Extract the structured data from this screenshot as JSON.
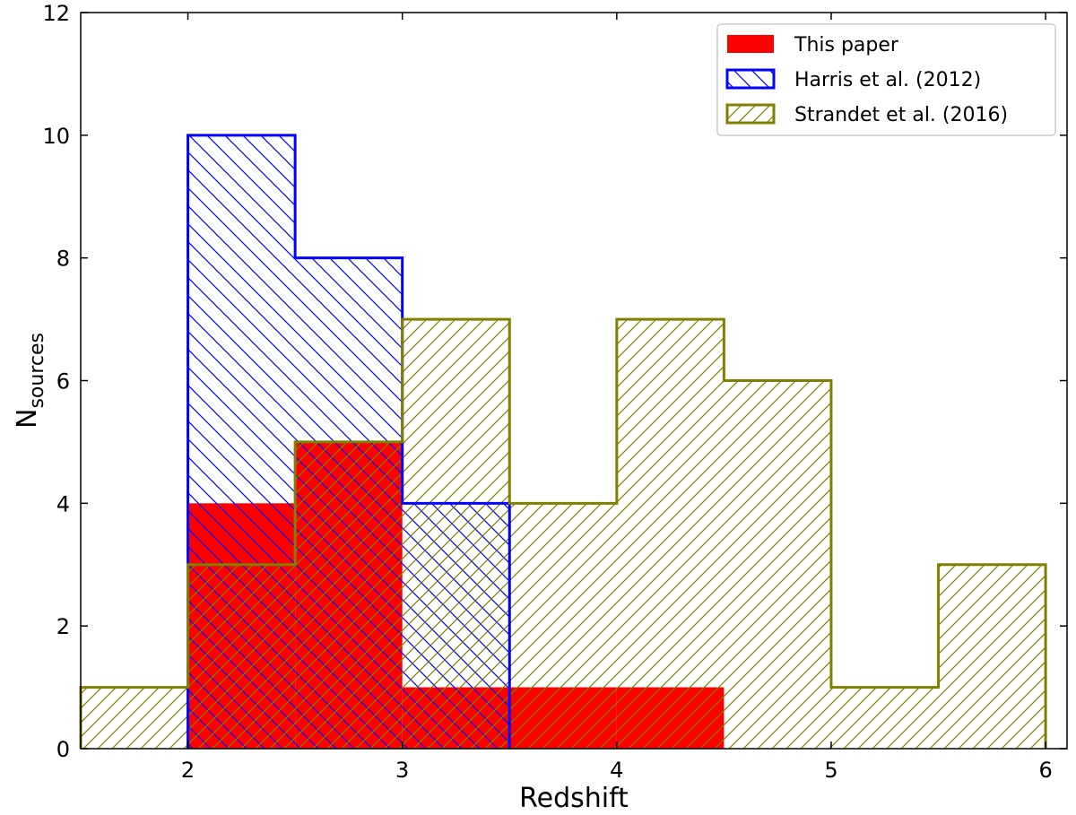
{
  "chart_data": {
    "type": "histogram",
    "xlabel": "Redshift",
    "ylabel": "N",
    "ylabel_sub": "sources",
    "xlim": [
      1.5,
      6.1
    ],
    "ylim": [
      0,
      12
    ],
    "xticks": [
      2,
      3,
      4,
      5,
      6
    ],
    "yticks": [
      0,
      2,
      4,
      6,
      8,
      10,
      12
    ],
    "grid": false,
    "legend_position": "top-right",
    "series": [
      {
        "name": "Strandet et al. (2016)",
        "color": "#808000",
        "style": "hatched-diagonal-forward",
        "bins": [
          {
            "x0": 1.5,
            "x1": 2.0,
            "value": 1
          },
          {
            "x0": 2.0,
            "x1": 2.5,
            "value": 3
          },
          {
            "x0": 2.5,
            "x1": 3.0,
            "value": 5
          },
          {
            "x0": 3.0,
            "x1": 3.5,
            "value": 7
          },
          {
            "x0": 3.5,
            "x1": 4.0,
            "value": 4
          },
          {
            "x0": 4.0,
            "x1": 4.5,
            "value": 7
          },
          {
            "x0": 4.5,
            "x1": 5.0,
            "value": 6
          },
          {
            "x0": 5.0,
            "x1": 5.5,
            "value": 1
          },
          {
            "x0": 5.5,
            "x1": 6.0,
            "value": 3
          }
        ]
      },
      {
        "name": "Harris et al. (2012)",
        "color": "#0000ff",
        "style": "hatched-diagonal-backward",
        "bins": [
          {
            "x0": 2.0,
            "x1": 2.5,
            "value": 10
          },
          {
            "x0": 2.5,
            "x1": 3.0,
            "value": 8
          },
          {
            "x0": 3.0,
            "x1": 3.5,
            "value": 4
          }
        ]
      },
      {
        "name": "This paper",
        "color": "#ff0000",
        "style": "filled",
        "bins": [
          {
            "x0": 2.0,
            "x1": 2.5,
            "value": 4
          },
          {
            "x0": 2.5,
            "x1": 3.0,
            "value": 5
          },
          {
            "x0": 3.0,
            "x1": 3.5,
            "value": 1
          },
          {
            "x0": 3.5,
            "x1": 4.0,
            "value": 1
          },
          {
            "x0": 4.0,
            "x1": 4.5,
            "value": 1
          }
        ]
      }
    ],
    "legend_order": [
      "This paper",
      "Harris et al. (2012)",
      "Strandet et al. (2016)"
    ]
  }
}
